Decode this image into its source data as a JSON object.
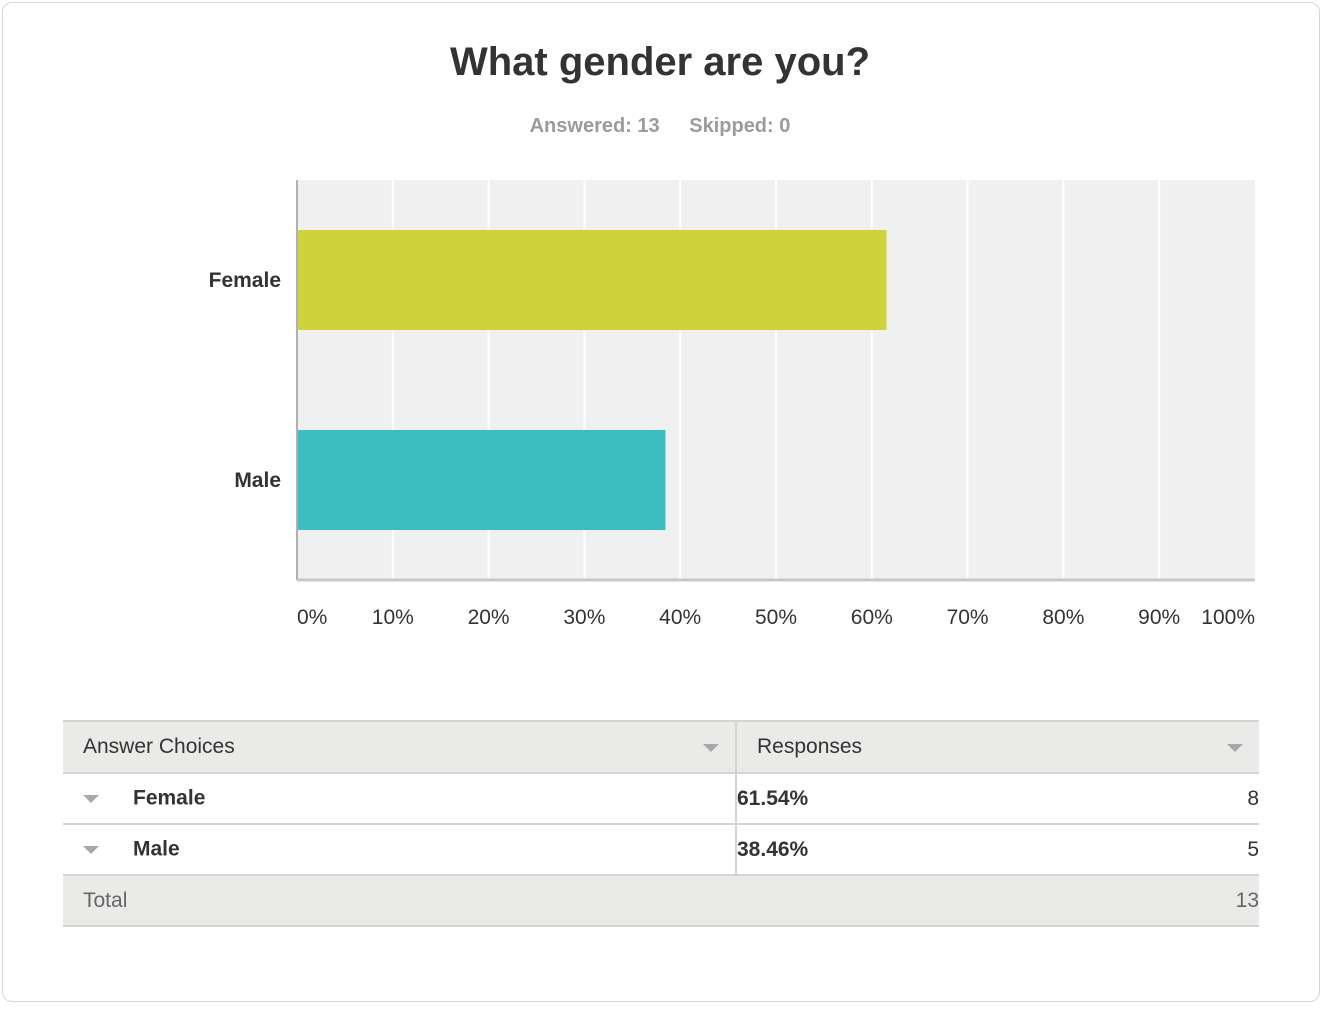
{
  "header": {
    "title": "What gender are you?",
    "answered": "Answered: 13",
    "skipped": "Skipped: 0"
  },
  "chart_data": {
    "type": "bar",
    "orientation": "horizontal",
    "categories": [
      "Female",
      "Male"
    ],
    "values": [
      61.54,
      38.46
    ],
    "colors": [
      "#cfd33b",
      "#3cbec0"
    ],
    "xlim": [
      0,
      100
    ],
    "x_ticks": [
      "0%",
      "10%",
      "20%",
      "30%",
      "40%",
      "50%",
      "60%",
      "70%",
      "80%",
      "90%",
      "100%"
    ],
    "grid": true
  },
  "table": {
    "headers": [
      "Answer Choices",
      "Responses"
    ],
    "rows": [
      {
        "choice": "Female",
        "percent": "61.54%",
        "count": "8"
      },
      {
        "choice": "Male",
        "percent": "38.46%",
        "count": "5"
      }
    ],
    "total_label": "Total",
    "total_value": "13"
  }
}
